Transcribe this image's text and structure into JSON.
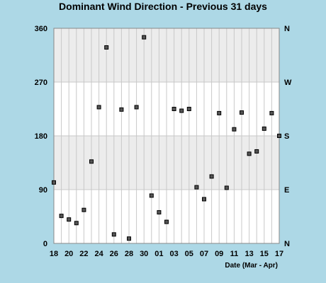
{
  "chart_data": {
    "type": "scatter",
    "title": "Dominant Wind Direction - Previous 31 days",
    "xlabel": "Date (Mar - Apr)",
    "ylabel": "",
    "ylim": [
      0,
      360
    ],
    "y_ticks": [
      0,
      90,
      180,
      270,
      360
    ],
    "compass_ticks": [
      {
        "value": 0,
        "label": "N"
      },
      {
        "value": 90,
        "label": "E"
      },
      {
        "value": 180,
        "label": "S"
      },
      {
        "value": 270,
        "label": "W"
      },
      {
        "value": 360,
        "label": "N"
      }
    ],
    "x_tick_labels": [
      "18",
      "20",
      "22",
      "24",
      "26",
      "28",
      "30",
      "01",
      "03",
      "05",
      "07",
      "09",
      "11",
      "13",
      "15",
      "17"
    ],
    "bands": [
      {
        "from": 90,
        "to": 180,
        "color": "#ececec"
      },
      {
        "from": 270,
        "to": 360,
        "color": "#ececec"
      }
    ],
    "grid": true,
    "point_color": "#555555",
    "x": [
      "Mar 18",
      "Mar 19",
      "Mar 20",
      "Mar 21",
      "Mar 22",
      "Mar 23",
      "Mar 24",
      "Mar 25",
      "Mar 26",
      "Mar 27",
      "Mar 28",
      "Mar 29",
      "Mar 30",
      "Mar 31",
      "Apr 01",
      "Apr 02",
      "Apr 03",
      "Apr 04",
      "Apr 05",
      "Apr 06",
      "Apr 07",
      "Apr 08",
      "Apr 09",
      "Apr 10",
      "Apr 11",
      "Apr 12",
      "Apr 13",
      "Apr 14",
      "Apr 15",
      "Apr 16",
      "Apr 17"
    ],
    "values": [
      102,
      46,
      40,
      34,
      56,
      137,
      228,
      328,
      15,
      224,
      8,
      228,
      345,
      80,
      52,
      36,
      225,
      222,
      225,
      94,
      74,
      112,
      218,
      93,
      191,
      219,
      150,
      154,
      192,
      218,
      180
    ]
  }
}
